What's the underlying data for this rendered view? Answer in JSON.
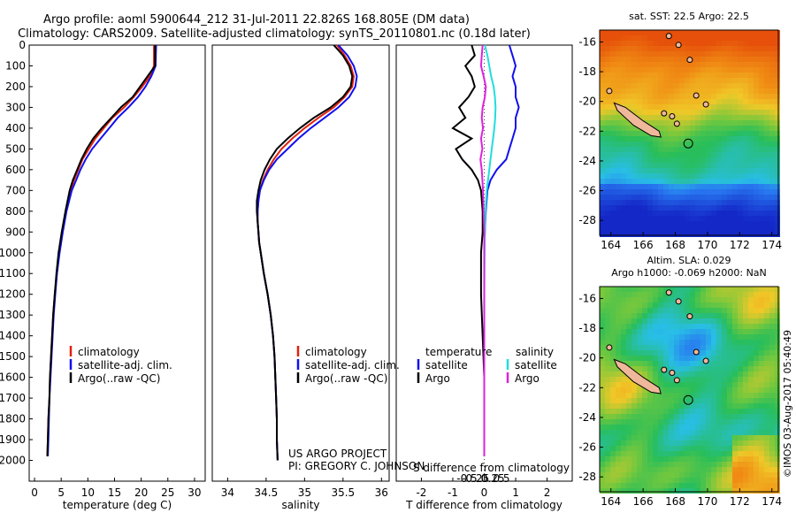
{
  "header": {
    "line1": "Argo profile: aoml 5900644_212 31-Jul-2011 22.826S 168.805E (DM data)",
    "line2": "Climatology: CARS2009. Satellite-adjusted climatology: synTS_20110801.nc (0.18d later)"
  },
  "colors": {
    "climatology": "#e02010",
    "satellite": "#1010ee",
    "argo": "#000000",
    "sat_salinity": "#22dddd",
    "argo_salinity": "#dd22dd",
    "land": "#f0b89a"
  },
  "chart_data": [
    {
      "type": "line",
      "name": "temperature-profile",
      "xlabel": "temperature (deg C)",
      "ylabel": "",
      "xlim": [
        -1,
        32
      ],
      "ylim": [
        2100,
        0
      ],
      "xticks": [
        0,
        5,
        10,
        15,
        20,
        25,
        30
      ],
      "yticks": [
        0,
        100,
        200,
        300,
        400,
        500,
        600,
        700,
        800,
        900,
        1000,
        1100,
        1200,
        1300,
        1400,
        1500,
        1600,
        1700,
        1800,
        1900,
        2000
      ],
      "depth": [
        0,
        100,
        150,
        200,
        250,
        300,
        350,
        400,
        450,
        500,
        550,
        600,
        650,
        700,
        800,
        900,
        1000,
        1100,
        1200,
        1300,
        1400,
        1500,
        1600,
        1700,
        1800,
        1900,
        1980
      ],
      "series": [
        {
          "name": "climatology",
          "values": [
            22.4,
            22.4,
            21.6,
            20.2,
            18.6,
            16.8,
            14.6,
            13.0,
            11.4,
            10.2,
            9.0,
            8.2,
            7.4,
            6.8,
            5.9,
            5.2,
            4.6,
            4.2,
            3.8,
            3.5,
            3.3,
            3.1,
            2.9,
            2.8,
            2.6,
            2.5,
            2.4
          ]
        },
        {
          "name": "satellite-adj. clim.",
          "values": [
            22.8,
            22.7,
            21.9,
            20.8,
            19.4,
            17.6,
            15.6,
            14.0,
            12.4,
            10.8,
            9.6,
            8.6,
            7.8,
            7.0,
            6.0,
            5.3,
            4.7,
            4.2,
            3.9,
            3.6,
            3.4,
            3.2,
            3.0,
            2.8,
            2.7,
            2.6,
            2.5
          ]
        },
        {
          "name": "Argo(..raw -QC)",
          "values": [
            22.6,
            22.6,
            21.2,
            19.8,
            18.4,
            16.2,
            14.4,
            12.6,
            11.0,
            9.8,
            8.8,
            8.0,
            7.2,
            6.6,
            5.8,
            5.1,
            4.5,
            4.1,
            3.8,
            3.5,
            3.3,
            3.1,
            2.9,
            2.8,
            2.6,
            2.5,
            2.4
          ]
        }
      ]
    },
    {
      "type": "line",
      "name": "salinity-profile",
      "xlabel": "salinity",
      "ylabel": "",
      "xlim": [
        33.8,
        36.1
      ],
      "ylim": [
        2100,
        0
      ],
      "xticks": [
        34,
        34.5,
        35,
        35.5,
        36
      ],
      "depth": [
        0,
        50,
        100,
        150,
        200,
        250,
        300,
        350,
        400,
        450,
        500,
        550,
        600,
        650,
        700,
        750,
        800,
        850,
        900,
        950,
        1000,
        1100,
        1200,
        1300,
        1400,
        1500,
        1600,
        1700,
        1800,
        1900,
        2000
      ],
      "series": [
        {
          "name": "climatology",
          "values": [
            35.42,
            35.52,
            35.6,
            35.64,
            35.62,
            35.52,
            35.38,
            35.18,
            35.0,
            34.84,
            34.7,
            34.6,
            34.52,
            34.46,
            34.42,
            34.4,
            34.39,
            34.39,
            34.4,
            34.41,
            34.43,
            34.47,
            34.52,
            34.56,
            34.59,
            34.61,
            34.62,
            34.63,
            34.64,
            34.64,
            34.65
          ]
        },
        {
          "name": "satellite-adj. clim.",
          "values": [
            35.44,
            35.56,
            35.64,
            35.68,
            35.66,
            35.58,
            35.44,
            35.26,
            35.08,
            34.92,
            34.78,
            34.64,
            34.54,
            34.47,
            34.42,
            34.4,
            34.39,
            34.39,
            34.4,
            34.41,
            34.43,
            34.47,
            34.52,
            34.56,
            34.59,
            34.61,
            34.62,
            34.63,
            34.64,
            34.64,
            34.65
          ]
        },
        {
          "name": "Argo(..raw -QC)",
          "values": [
            35.38,
            35.5,
            35.58,
            35.62,
            35.6,
            35.5,
            35.34,
            35.12,
            34.94,
            34.78,
            34.64,
            34.55,
            34.48,
            34.43,
            34.4,
            34.38,
            34.38,
            34.39,
            34.4,
            34.41,
            34.43,
            34.47,
            34.52,
            34.56,
            34.59,
            34.61,
            34.62,
            34.63,
            34.64,
            34.64,
            34.65
          ]
        }
      ]
    },
    {
      "type": "line",
      "name": "difference-profile",
      "xlabel": "T difference from climatology",
      "xlabel2": "S difference from climatology",
      "xlim": [
        -2.8,
        2.8
      ],
      "ylim": [
        2100,
        0
      ],
      "xticks": [
        -2,
        -1,
        0,
        1,
        2
      ],
      "xticks2": [
        -0.5,
        -0.25,
        0,
        0.25,
        0.5
      ],
      "depth": [
        0,
        50,
        100,
        150,
        200,
        250,
        300,
        350,
        400,
        450,
        500,
        550,
        600,
        650,
        700,
        800,
        900,
        1000,
        1200,
        1400,
        1600,
        1800,
        1980
      ],
      "series": [
        {
          "name": "temperature satellite",
          "values": [
            0.8,
            0.9,
            1.0,
            0.9,
            1.0,
            1.0,
            1.1,
            1.0,
            1.0,
            0.9,
            0.8,
            0.7,
            0.4,
            0.2,
            0.1,
            0.05,
            0.02,
            0.0,
            0.0,
            0.0,
            0.0,
            0.0,
            0.0
          ]
        },
        {
          "name": "temperature Argo",
          "values": [
            -0.4,
            -0.3,
            -0.6,
            -0.4,
            -0.3,
            -0.5,
            -0.8,
            -0.6,
            -1.0,
            -0.4,
            -0.9,
            -0.7,
            -0.4,
            -0.2,
            -0.1,
            -0.05,
            -0.05,
            -0.1,
            -0.1,
            -0.05,
            0.0,
            0.0,
            0.0
          ]
        },
        {
          "name": "salinity satellite",
          "values": [
            0.02,
            0.1,
            0.16,
            0.22,
            0.3,
            0.34,
            0.36,
            0.35,
            0.32,
            0.28,
            0.24,
            0.2,
            0.16,
            0.12,
            0.08,
            0.04,
            0.02,
            0.01,
            0.0,
            0.0,
            0.0,
            0.0,
            0.0
          ]
        },
        {
          "name": "salinity Argo",
          "values": [
            -0.05,
            -0.08,
            -0.1,
            -0.02,
            0.05,
            0.02,
            -0.05,
            -0.08,
            -0.04,
            -0.1,
            -0.06,
            -0.12,
            -0.08,
            -0.06,
            -0.04,
            -0.02,
            0.0,
            0.0,
            0.0,
            0.0,
            0.0,
            0.0,
            0.0
          ]
        }
      ]
    },
    {
      "type": "heatmap",
      "name": "sst-map",
      "title": "sat. SST: 22.5  Argo: 22.5",
      "xticks": [
        164,
        166,
        168,
        170,
        172,
        174
      ],
      "yticks": [
        -16,
        -18,
        -20,
        -22,
        -24,
        -26,
        -28
      ],
      "xlim": [
        163.3,
        174.4
      ],
      "ylim": [
        -29,
        -15.2
      ],
      "argo_position": [
        168.805,
        -22.826
      ]
    },
    {
      "type": "heatmap",
      "name": "sla-map",
      "title": "Altim. SLA: 0.029",
      "subtitle": "Argo h1000: -0.069 h2000: NaN",
      "xticks": [
        164,
        166,
        168,
        170,
        172,
        174
      ],
      "yticks": [
        -16,
        -18,
        -20,
        -22,
        -24,
        -26,
        -28
      ],
      "xlim": [
        163.3,
        174.4
      ],
      "ylim": [
        -29,
        -15.2
      ],
      "argo_position": [
        168.805,
        -22.826
      ]
    }
  ],
  "legend_temp": {
    "items": [
      "climatology",
      "satellite-adj. clim.",
      "Argo(..raw -QC)"
    ]
  },
  "legend_sal": {
    "items": [
      "climatology",
      "satellite-adj. clim.",
      "Argo(..raw -QC)"
    ]
  },
  "legend_diff": {
    "temp_header": "temperature",
    "sal_header": "salinity",
    "items": [
      "satellite",
      "Argo",
      "satellite",
      "Argo"
    ]
  },
  "credits": {
    "project": "US ARGO PROJECT",
    "pi": "PI: GREGORY C. JOHNSON",
    "stamp": "©IMOS 03-Aug-2017 05:40:49"
  }
}
